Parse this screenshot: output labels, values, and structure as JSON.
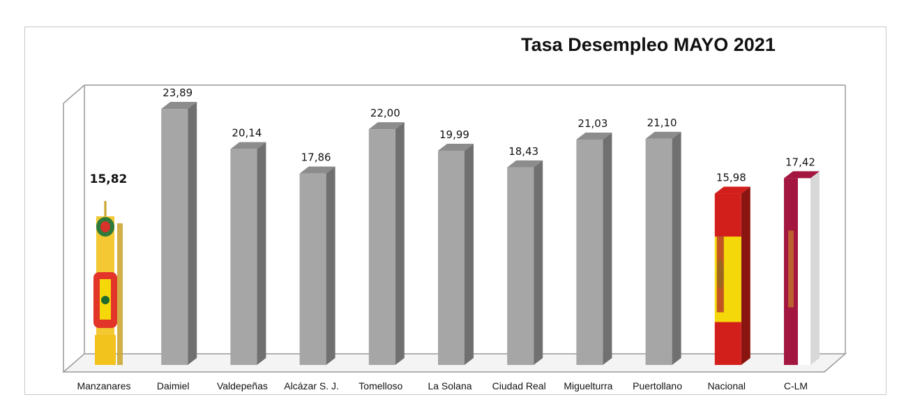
{
  "chart_data": {
    "type": "bar",
    "title": "Tasa Desempleo MAYO 2021",
    "categories": [
      "Manzanares",
      "Daimiel",
      "Valdepeñas",
      "Alcázar S. J.",
      "Tomelloso",
      "La Solana",
      "Ciudad Real",
      "Miguelturra",
      "Puertollano",
      "Nacional",
      "C-LM"
    ],
    "value_labels": [
      "15,82",
      "23,89",
      "20,14",
      "17,86",
      "22,00",
      "19,99",
      "18,43",
      "21,03",
      "21,10",
      "15,98",
      "17,42"
    ],
    "values": [
      15.82,
      23.89,
      20.14,
      17.86,
      22.0,
      19.99,
      18.43,
      21.03,
      21.1,
      15.98,
      17.42
    ],
    "bar_styles": [
      "coat-of-arms",
      "gray",
      "gray",
      "gray",
      "gray",
      "gray",
      "gray",
      "gray",
      "gray",
      "flag-spain",
      "flag-clm"
    ],
    "xlabel": "",
    "ylabel": "",
    "grid": false,
    "legend": "none",
    "three_d": true,
    "colors": {
      "bar_front": "#a6a6a6",
      "bar_side": "#707070",
      "bar_top": "#8c8c8c",
      "spain_red": "#d21f1b",
      "spain_yellow": "#f5d80a",
      "clm_crimson": "#a3163f",
      "clm_white": "#ffffff",
      "axis_frame": "#999999"
    }
  }
}
